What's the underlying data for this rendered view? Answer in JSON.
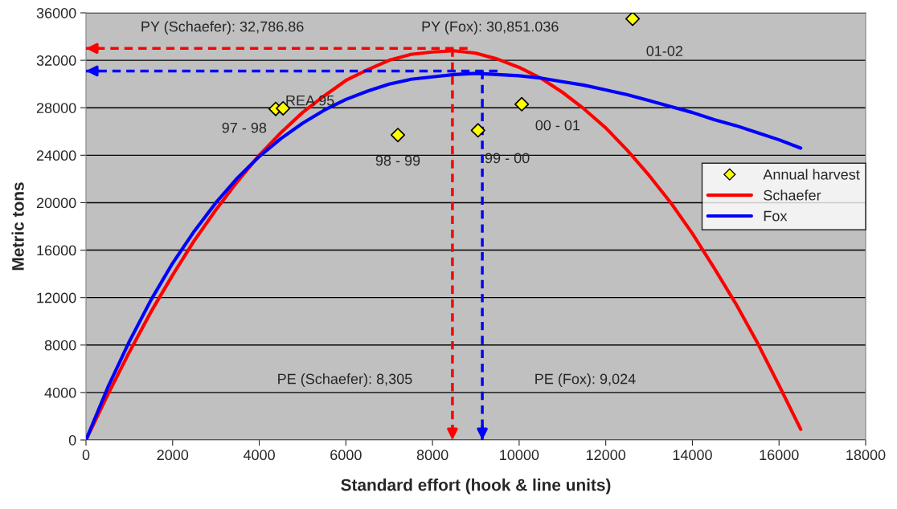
{
  "chart_data": {
    "type": "line",
    "xlabel": "Standard effort (hook & line units)",
    "ylabel": "Metric tons",
    "xlim": [
      0,
      18000
    ],
    "xticks": [
      0,
      2000,
      4000,
      6000,
      8000,
      10000,
      12000,
      14000,
      16000,
      18000
    ],
    "ylim": [
      0,
      36000
    ],
    "yticks": [
      0,
      4000,
      8000,
      12000,
      16000,
      20000,
      24000,
      28000,
      32000,
      36000
    ],
    "grid": "y",
    "legend": "right",
    "series": [
      {
        "name": "Annual harvest",
        "type": "scatter",
        "marker": "diamond",
        "color": "#ffff00",
        "x": [
          4380,
          4550,
          7200,
          9050,
          10060,
          12620
        ],
        "values": [
          27900,
          27950,
          25700,
          26100,
          28300,
          35500
        ]
      },
      {
        "name": "Schaefer",
        "color": "#ff0000",
        "x": [
          0,
          500,
          1000,
          1500,
          2000,
          2500,
          3000,
          3500,
          4000,
          4500,
          5000,
          5500,
          6000,
          6500,
          7000,
          7500,
          8000,
          8500,
          9000,
          9500,
          10000,
          10500,
          11000,
          11500,
          12000,
          12500,
          13000,
          13500,
          14000,
          14500,
          15000,
          15500,
          16000,
          16500
        ],
        "values": [
          0,
          3800,
          7400,
          10800,
          13900,
          16800,
          19400,
          21800,
          24000,
          25900,
          27600,
          29000,
          30300,
          31200,
          32000,
          32500,
          32700,
          32800,
          32600,
          32100,
          31400,
          30500,
          29300,
          27900,
          26300,
          24400,
          22300,
          20000,
          17400,
          14500,
          11500,
          8200,
          4600,
          900
        ]
      },
      {
        "name": "Fox",
        "color": "#0000ff",
        "x": [
          0,
          500,
          1000,
          1500,
          2000,
          2500,
          3000,
          3500,
          4000,
          4500,
          5000,
          5500,
          6000,
          6500,
          7000,
          7500,
          8000,
          8500,
          9000,
          9500,
          10000,
          10500,
          11000,
          11500,
          12000,
          12500,
          13000,
          13500,
          14000,
          14500,
          15000,
          15500,
          16000,
          16500
        ],
        "values": [
          0,
          4400,
          8300,
          11800,
          14900,
          17600,
          20000,
          22100,
          23900,
          25400,
          26700,
          27800,
          28700,
          29400,
          30000,
          30400,
          30600,
          30800,
          30900,
          30800,
          30700,
          30500,
          30200,
          29900,
          29500,
          29100,
          28600,
          28100,
          27600,
          27000,
          26500,
          25900,
          25300,
          24600
        ]
      }
    ],
    "ref_lines": [
      {
        "axis": "y",
        "value": 33000,
        "color": "#ff0000",
        "line_style": "dashed"
      },
      {
        "axis": "x",
        "value": 8460,
        "color": "#ff0000",
        "line_style": "dashed"
      },
      {
        "axis": "y",
        "value": 31100,
        "color": "#0000ff",
        "line_style": "dashed"
      },
      {
        "axis": "x",
        "value": 9150,
        "color": "#0000ff",
        "line_style": "dashed"
      }
    ],
    "annotations": [
      {
        "text": "97 - 98",
        "x": 4380,
        "y": 27900
      },
      {
        "text": "REA 95",
        "x": 4550,
        "y": 27950
      },
      {
        "text": "98 - 99",
        "x": 7200,
        "y": 25700
      },
      {
        "text": "99 - 00",
        "x": 9050,
        "y": 26100
      },
      {
        "text": "00 - 01",
        "x": 10060,
        "y": 28300
      },
      {
        "text": "01-02",
        "x": 12620,
        "y": 35500
      },
      "PY (Schaefer): 32,786.86",
      "PY (Fox): 30,851.036",
      "PE (Schaefer): 8,305",
      "PE (Fox): 9,024"
    ]
  }
}
